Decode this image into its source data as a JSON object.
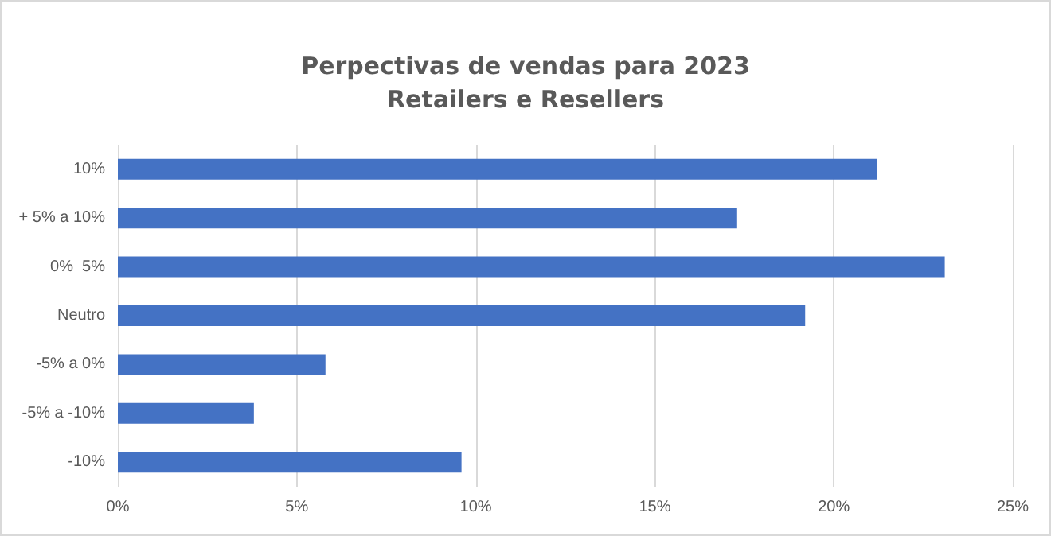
{
  "chart_data": {
    "type": "bar",
    "orientation": "horizontal",
    "title": "Perpectivas de vendas para 2023",
    "subtitle": "Retailers e Resellers",
    "categories": [
      "10%",
      "+ 5% a 10%",
      "0%  5%",
      "Neutro",
      "-5% a 0%",
      "-5% a -10%",
      "-10%"
    ],
    "values": [
      21.2,
      17.3,
      23.1,
      19.2,
      5.8,
      3.8,
      9.6
    ],
    "color": "#4472c4",
    "xlim": [
      0,
      25
    ],
    "xticks": [
      {
        "value": 0,
        "label": "0%"
      },
      {
        "value": 5,
        "label": "5%"
      },
      {
        "value": 10,
        "label": "10%"
      },
      {
        "value": 15,
        "label": "15%"
      },
      {
        "value": 20,
        "label": "20%"
      },
      {
        "value": 25,
        "label": "25%"
      }
    ],
    "grid": "x"
  }
}
